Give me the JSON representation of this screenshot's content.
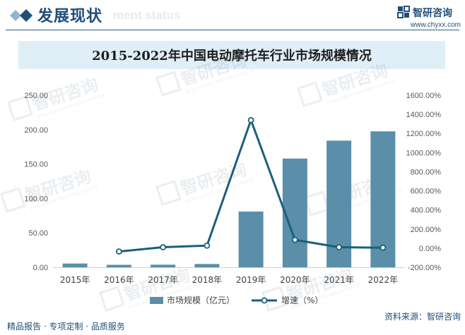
{
  "header": {
    "title": "发展现状",
    "subtitle_ghost": "ment status",
    "logo_name": "智研咨询",
    "logo_url": "www.chyxx.com"
  },
  "watermark": {
    "text": "智研咨询",
    "subtext": "INTELLIGENCE RESEARCH GROUP"
  },
  "footer": {
    "left": "精品报告 · 专项定制 · 品质服务",
    "right": "资料来源：智研咨询"
  },
  "colors": {
    "bar": "#5b8fa9",
    "line": "#1b5f7a",
    "title_band": "#dfeef7",
    "brand": "#1f4e79"
  },
  "chart_data": {
    "type": "bar",
    "title": "2015-2022年中国电动摩托车行业市场规模情况",
    "categories": [
      "2015年",
      "2016年",
      "2017年",
      "2018年",
      "2019年",
      "2020年",
      "2021年",
      "2022年"
    ],
    "series": [
      {
        "name": "市场规模（亿元）",
        "type": "bar",
        "axis": "left",
        "values": [
          5.5,
          3.6,
          3.8,
          4.8,
          81.0,
          158.0,
          184.0,
          197.5
        ]
      },
      {
        "name": "增速（%）",
        "type": "line",
        "axis": "right",
        "values": [
          null,
          -35.0,
          10.0,
          27.0,
          1340.0,
          87.0,
          10.0,
          5.0
        ]
      }
    ],
    "ylim_left": [
      0,
      250
    ],
    "yticks_left": [
      "0.00",
      "50.00",
      "100.00",
      "150.00",
      "200.00",
      "250.00"
    ],
    "ylim_right": [
      -200,
      1600
    ],
    "yticks_right": [
      "-200.00%",
      "0.00%",
      "200.00%",
      "400.00%",
      "600.00%",
      "800.00%",
      "1000.00%",
      "1200.00%",
      "1400.00%",
      "1600.00%"
    ],
    "legend_position": "bottom",
    "grid": false
  }
}
